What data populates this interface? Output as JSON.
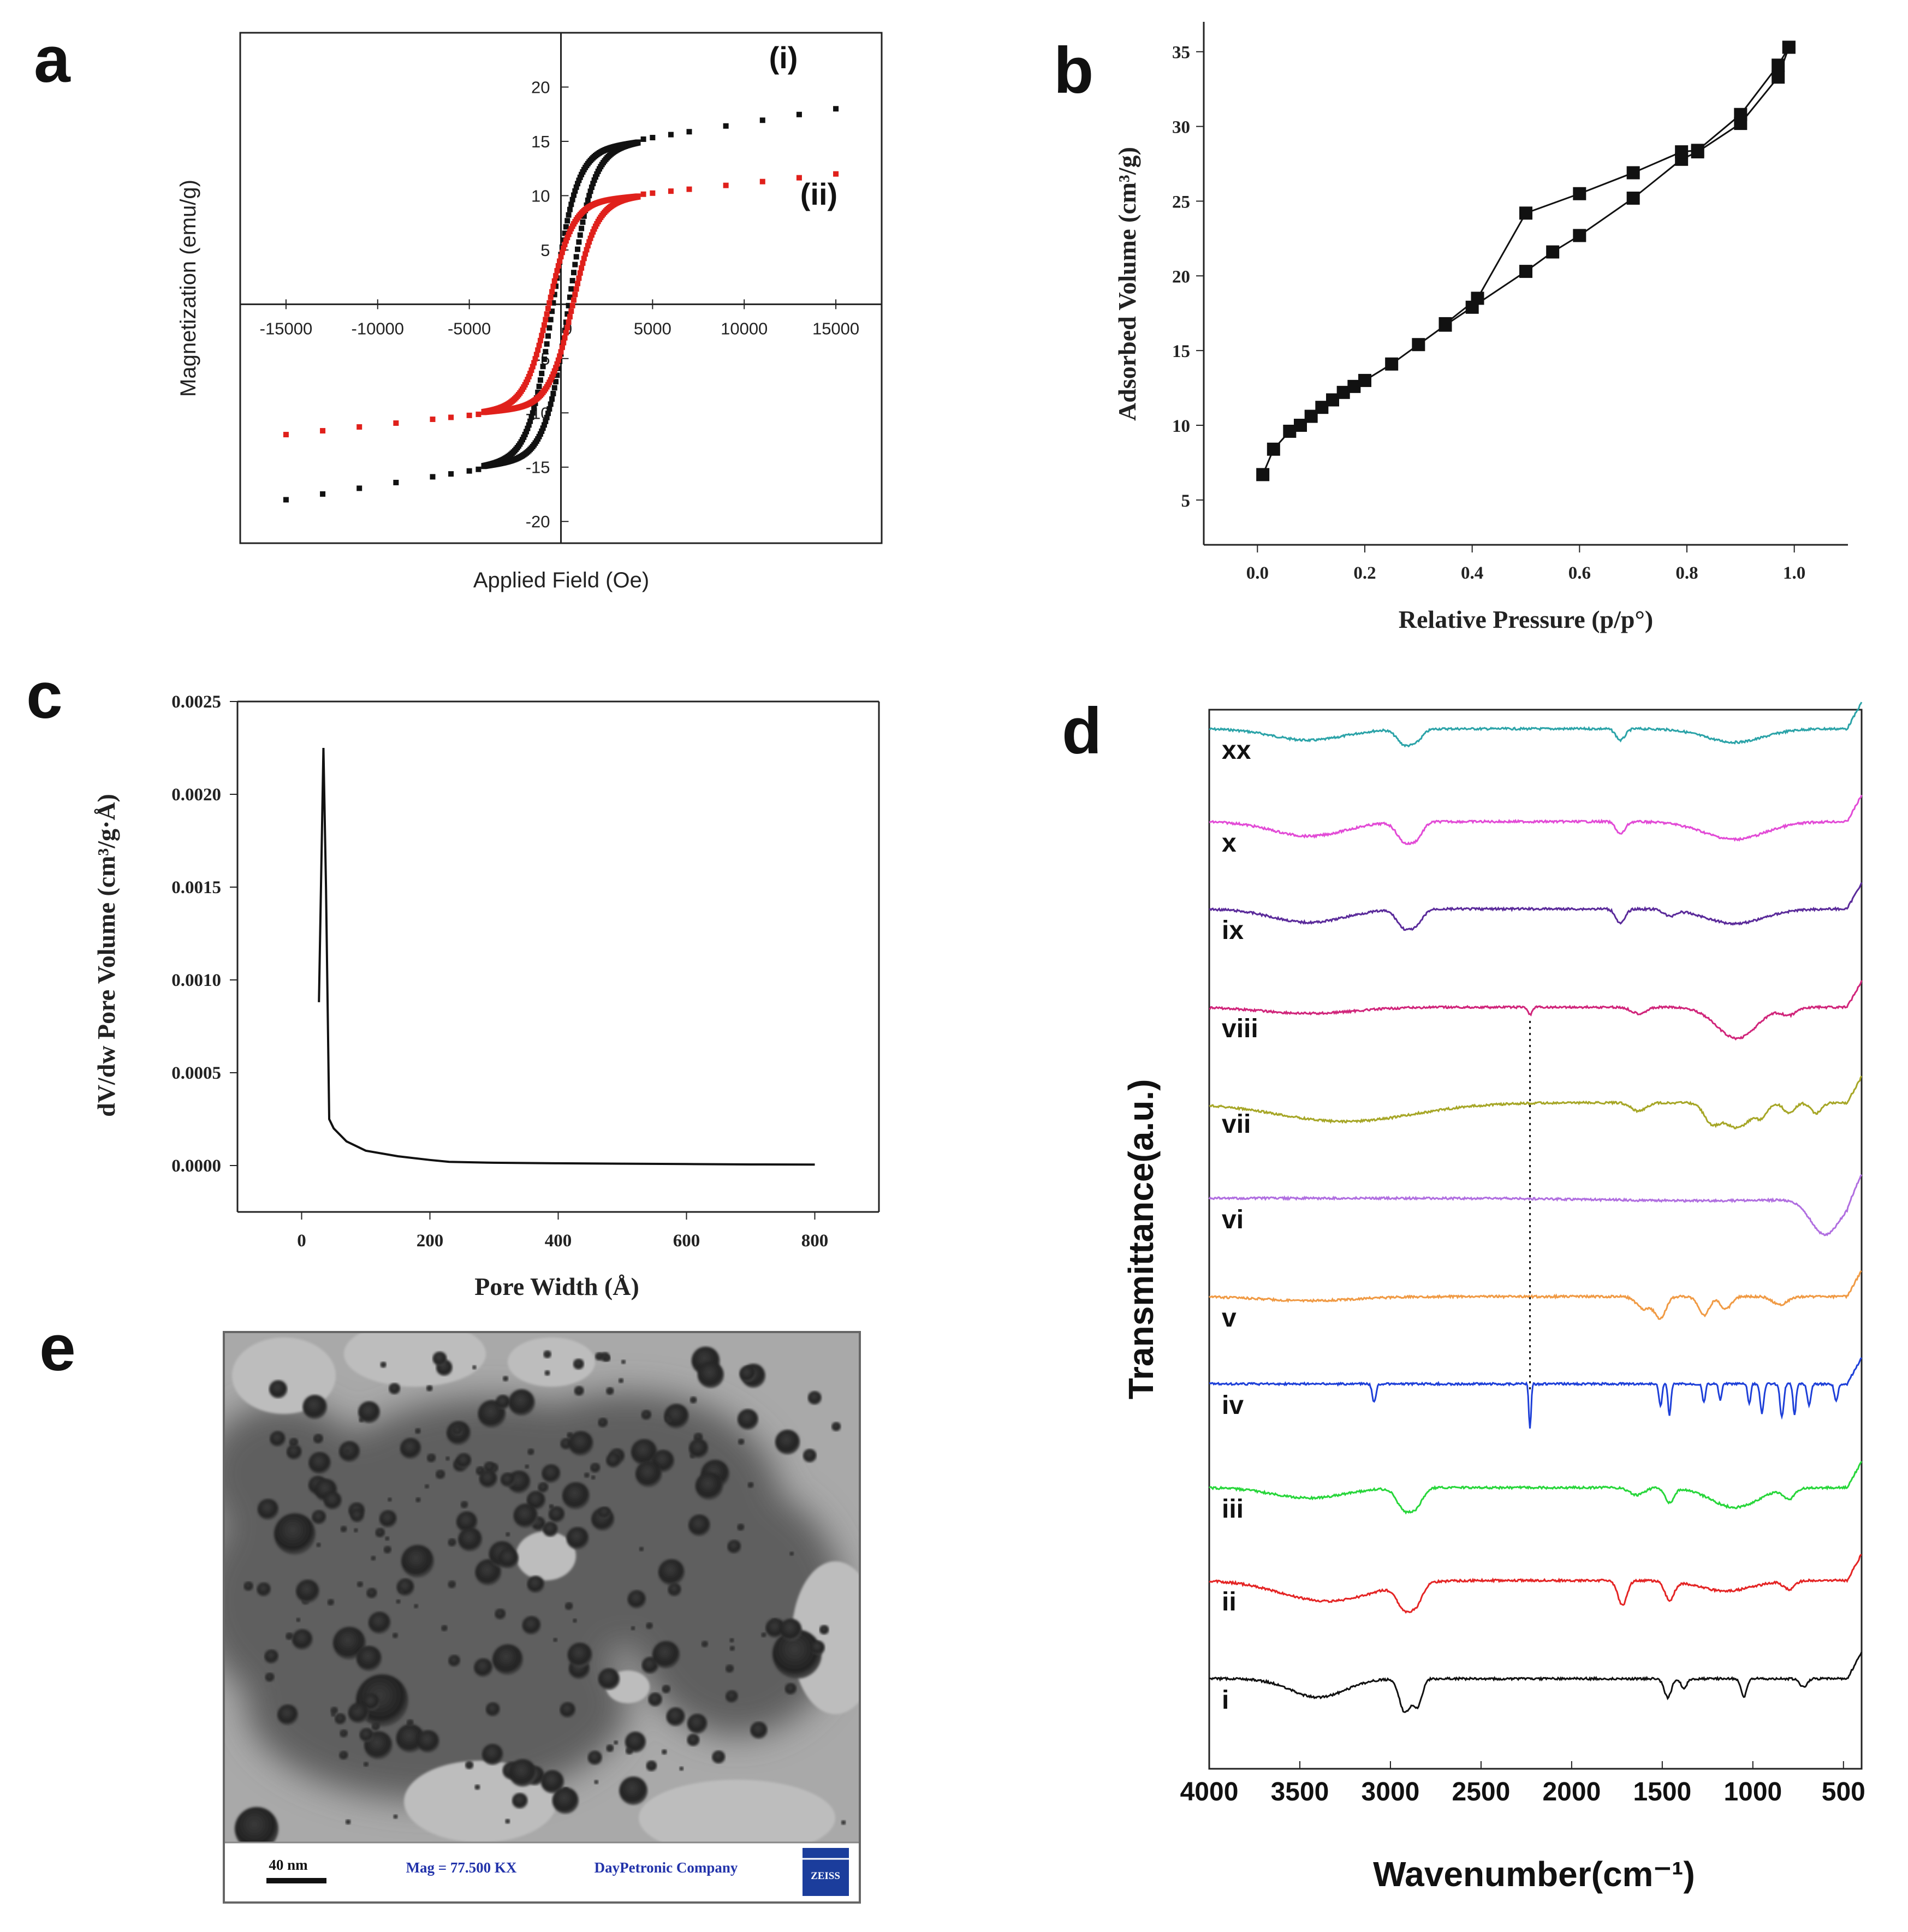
{
  "panels": {
    "a": {
      "letter": "a",
      "chart_data": {
        "type": "scatter",
        "title": "",
        "xlabel": "Applied Field (Oe)",
        "ylabel": "Magnetization (emu/g)",
        "xlim": [
          -17500,
          17500
        ],
        "ylim": [
          -22,
          25
        ],
        "xticks": [
          -15000,
          -10000,
          -5000,
          0,
          5000,
          10000,
          15000
        ],
        "xtick_labels": [
          "-15000",
          "-10000",
          "-5000",
          "0",
          "5000",
          "10000",
          "15000"
        ],
        "yticks": [
          -20,
          -15,
          -10,
          -5,
          0,
          5,
          10,
          15,
          20
        ],
        "ytick_labels": [
          "-20",
          "-15",
          "-10",
          "-5",
          "0",
          "5",
          "10",
          "15",
          "20"
        ],
        "annotations": [
          "(i)",
          "(ii)"
        ],
        "series": [
          {
            "name": "(i)",
            "color": "#111111",
            "Ms": 18,
            "Mr": 6,
            "Hc": 200,
            "Hmax": 15000,
            "marker": "square"
          },
          {
            "name": "(ii)",
            "color": "#e0201b",
            "Ms": 12,
            "Mr": 4,
            "Hc": 300,
            "Hmax": 15000,
            "marker": "square"
          }
        ]
      }
    },
    "b": {
      "letter": "b",
      "chart_data": {
        "type": "line",
        "title": "",
        "xlabel": "Relative Pressure (p/p°)",
        "ylabel": "Adsorbed Volume (cm³/g)",
        "xlim": [
          -0.1,
          1.1
        ],
        "ylim": [
          2,
          37
        ],
        "xticks": [
          0.0,
          0.2,
          0.4,
          0.6,
          0.8,
          1.0
        ],
        "xtick_labels": [
          "0.0",
          "0.2",
          "0.4",
          "0.6",
          "0.8",
          "1.0"
        ],
        "yticks": [
          5,
          10,
          15,
          20,
          25,
          30,
          35
        ],
        "ytick_labels": [
          "5",
          "10",
          "15",
          "20",
          "25",
          "30",
          "35"
        ],
        "series": [
          {
            "name": "adsorption",
            "color": "#111111",
            "x": [
              0.01,
              0.03,
              0.06,
              0.08,
              0.1,
              0.12,
              0.14,
              0.16,
              0.18,
              0.2,
              0.25,
              0.3,
              0.35,
              0.4,
              0.5,
              0.55,
              0.6,
              0.7,
              0.79,
              0.82,
              0.9,
              0.97,
              0.99
            ],
            "y": [
              6.7,
              8.4,
              9.6,
              10.0,
              10.6,
              11.2,
              11.7,
              12.2,
              12.6,
              13.0,
              14.1,
              15.4,
              16.7,
              17.9,
              20.3,
              21.6,
              22.7,
              25.2,
              27.8,
              28.3,
              30.2,
              33.3,
              35.3
            ]
          },
          {
            "name": "desorption",
            "color": "#111111",
            "x": [
              0.99,
              0.97,
              0.9,
              0.82,
              0.79,
              0.7,
              0.6,
              0.5,
              0.41,
              0.35
            ],
            "y": [
              35.3,
              34.1,
              30.8,
              28.4,
              28.3,
              26.9,
              25.5,
              24.2,
              18.5,
              16.8
            ]
          }
        ]
      }
    },
    "c": {
      "letter": "c",
      "chart_data": {
        "type": "line",
        "title": "",
        "xlabel": "Pore Width (Å)",
        "ylabel": "dV/dw Pore Volume (cm³/g·Å)",
        "xlim": [
          -100,
          900
        ],
        "ylim": [
          -0.00025,
          0.0025
        ],
        "xticks": [
          0,
          200,
          400,
          600,
          800
        ],
        "xtick_labels": [
          "0",
          "200",
          "400",
          "600",
          "800"
        ],
        "yticks": [
          0.0,
          0.0005,
          0.001,
          0.0015,
          0.002,
          0.0025
        ],
        "ytick_labels": [
          "0.0000",
          "0.0005",
          "0.0010",
          "0.0015",
          "0.0020",
          "0.0025"
        ],
        "series": [
          {
            "name": "PSD",
            "color": "#111111",
            "x": [
              27,
              34,
              38,
              43,
              50,
              70,
              100,
              150,
              200,
              230,
              300,
              400,
              500,
              600,
              700,
              800
            ],
            "y": [
              0.00088,
              0.00225,
              0.0015,
              0.00025,
              0.0002,
              0.00013,
              8e-05,
              5e-05,
              3e-05,
              2e-05,
              1.5e-05,
              1.2e-05,
              1e-05,
              8e-06,
              6e-06,
              5e-06
            ]
          }
        ]
      }
    },
    "d": {
      "letter": "d",
      "chart_data": {
        "type": "line",
        "title": "",
        "xlabel": "Wavenumber(cm⁻¹)",
        "ylabel": "Transmittance(a.u.)",
        "xlim": [
          4000,
          400
        ],
        "xticks": [
          4000,
          3500,
          3000,
          2500,
          2000,
          1500,
          1000,
          500
        ],
        "xtick_labels": [
          "4000",
          "3500",
          "3000",
          "2500",
          "2000",
          "1500",
          "1000",
          "500"
        ],
        "reference_line_cm": 2230,
        "series": [
          {
            "name": "xx",
            "color": "#2ba3a8",
            "bands": [
              [
                3450,
                200,
                0.55
              ],
              [
                2925,
                40,
                0.7
              ],
              [
                2855,
                35,
                0.5
              ],
              [
                1730,
                25,
                0.55
              ],
              [
                1100,
                160,
                0.65
              ]
            ]
          },
          {
            "name": "x",
            "color": "#e24ad6",
            "bands": [
              [
                3450,
                200,
                0.7
              ],
              [
                2925,
                40,
                0.9
              ],
              [
                2855,
                35,
                0.7
              ],
              [
                1730,
                25,
                0.6
              ],
              [
                1100,
                170,
                0.85
              ]
            ]
          },
          {
            "name": "ix",
            "color": "#5a2a9a",
            "bands": [
              [
                3450,
                200,
                0.65
              ],
              [
                2925,
                40,
                0.85
              ],
              [
                2855,
                35,
                0.65
              ],
              [
                1730,
                25,
                0.7
              ],
              [
                1460,
                30,
                0.3
              ],
              [
                1100,
                160,
                0.7
              ]
            ]
          },
          {
            "name": "viii",
            "color": "#d0247a",
            "bands": [
              [
                3450,
                250,
                0.3
              ],
              [
                2230,
                12,
                0.35
              ],
              [
                1630,
                40,
                0.3
              ],
              [
                1090,
                110,
                1.5
              ],
              [
                800,
                40,
                0.35
              ]
            ]
          },
          {
            "name": "vii",
            "color": "#a6a626",
            "bands": [
              [
                3250,
                380,
                0.9
              ],
              [
                1630,
                40,
                0.4
              ],
              [
                1230,
                40,
                0.8
              ],
              [
                1090,
                80,
                1.2
              ],
              [
                950,
                30,
                0.5
              ],
              [
                800,
                30,
                0.5
              ],
              [
                650,
                30,
                0.5
              ]
            ]
          },
          {
            "name": "vi",
            "color": "#b06ee0",
            "bands": [
              [
                1300,
                500,
                0.12
              ],
              [
                600,
                80,
                1.7
              ]
            ]
          },
          {
            "name": "v",
            "color": "#f09a44",
            "bands": [
              [
                3450,
                250,
                0.2
              ],
              [
                1600,
                40,
                0.6
              ],
              [
                1510,
                30,
                1.0
              ],
              [
                1270,
                30,
                0.9
              ],
              [
                1150,
                30,
                0.6
              ],
              [
                850,
                40,
                0.4
              ]
            ]
          },
          {
            "name": "iv",
            "color": "#1d3fd8",
            "bands": [
              [
                3090,
                10,
                0.9
              ],
              [
                2230,
                6,
                2.2
              ],
              [
                1510,
                8,
                1.1
              ],
              [
                1460,
                8,
                1.5
              ],
              [
                1270,
                8,
                0.9
              ],
              [
                1180,
                8,
                0.8
              ],
              [
                1020,
                8,
                1.0
              ],
              [
                950,
                10,
                1.4
              ],
              [
                840,
                10,
                1.6
              ],
              [
                770,
                8,
                1.5
              ],
              [
                690,
                10,
                1.0
              ],
              [
                540,
                10,
                0.8
              ]
            ]
          },
          {
            "name": "iii",
            "color": "#27d63a",
            "bands": [
              [
                3450,
                200,
                0.5
              ],
              [
                2925,
                40,
                1.0
              ],
              [
                2855,
                35,
                0.8
              ],
              [
                1640,
                40,
                0.35
              ],
              [
                1460,
                25,
                0.7
              ],
              [
                1100,
                130,
                0.95
              ],
              [
                800,
                30,
                0.5
              ]
            ]
          },
          {
            "name": "ii",
            "color": "#e42424",
            "bands": [
              [
                3350,
                250,
                1.0
              ],
              [
                2925,
                40,
                1.1
              ],
              [
                2855,
                35,
                0.9
              ],
              [
                1720,
                25,
                1.2
              ],
              [
                1460,
                25,
                0.9
              ],
              [
                1150,
                150,
                0.5
              ],
              [
                800,
                30,
                0.4
              ]
            ]
          },
          {
            "name": "i",
            "color": "#111111",
            "bands": [
              [
                3400,
                150,
                0.9
              ],
              [
                2920,
                30,
                1.6
              ],
              [
                2850,
                25,
                1.3
              ],
              [
                1470,
                20,
                0.9
              ],
              [
                1380,
                15,
                0.5
              ],
              [
                1050,
                15,
                0.9
              ],
              [
                720,
                20,
                0.4
              ]
            ]
          }
        ]
      }
    },
    "e": {
      "letter": "e",
      "scale_bar": "40 nm",
      "mag_text": "Mag = 77.500 KX",
      "company": "DayPetronic Company",
      "logo_text": "ZEISS"
    }
  }
}
